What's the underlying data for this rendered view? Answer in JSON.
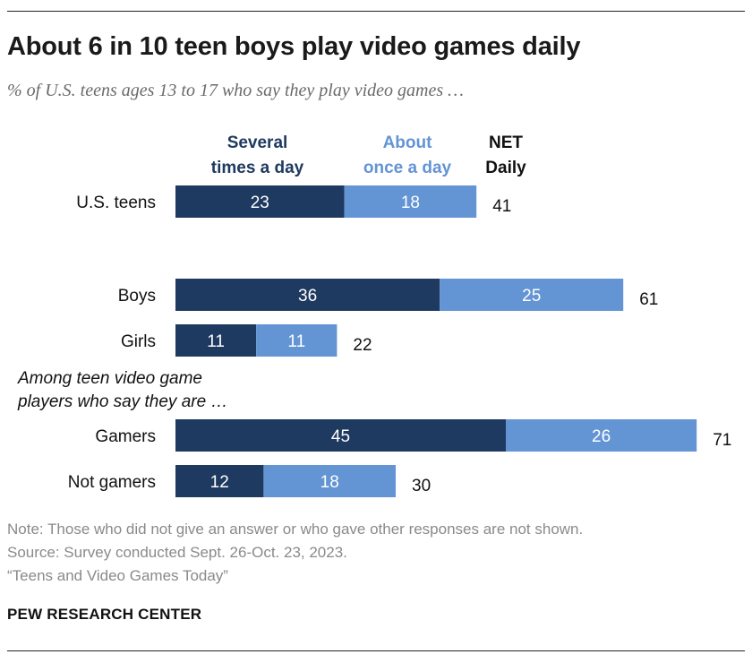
{
  "title": "About 6 in 10 teen boys play video games daily",
  "subtitle": "% of U.S. teens ages 13 to 17 who say they play video games …",
  "legend": {
    "several": [
      "Several",
      "times a day"
    ],
    "once": [
      "About",
      "once a day"
    ],
    "net": [
      "NET",
      "Daily"
    ]
  },
  "section_note": [
    "Among teen video game",
    "players who say they are …"
  ],
  "notes": {
    "note": "Note: Those who did not give an answer or who gave other responses are not shown.",
    "source": "Source: Survey conducted Sept. 26-Oct. 23, 2023.",
    "report": "“Teens and Video Games Today”"
  },
  "brand": "PEW RESEARCH CENTER",
  "colors": {
    "several": "#1f3a60",
    "once": "#6394d4"
  },
  "chart_data": {
    "type": "bar",
    "orientation": "horizontal",
    "stacked": true,
    "categories": [
      "U.S. teens",
      "Boys",
      "Girls",
      "Gamers",
      "Not gamers"
    ],
    "series": [
      {
        "name": "Several times a day",
        "values": [
          23,
          36,
          11,
          45,
          12
        ]
      },
      {
        "name": "About once a day",
        "values": [
          18,
          25,
          11,
          26,
          18
        ]
      }
    ],
    "net": {
      "name": "NET Daily",
      "values": [
        41,
        61,
        22,
        71,
        30
      ]
    },
    "title": "About 6 in 10 teen boys play video games daily",
    "xlabel": "",
    "ylabel": "",
    "xlim": [
      0,
      71
    ],
    "grid": false,
    "legend": "top"
  }
}
